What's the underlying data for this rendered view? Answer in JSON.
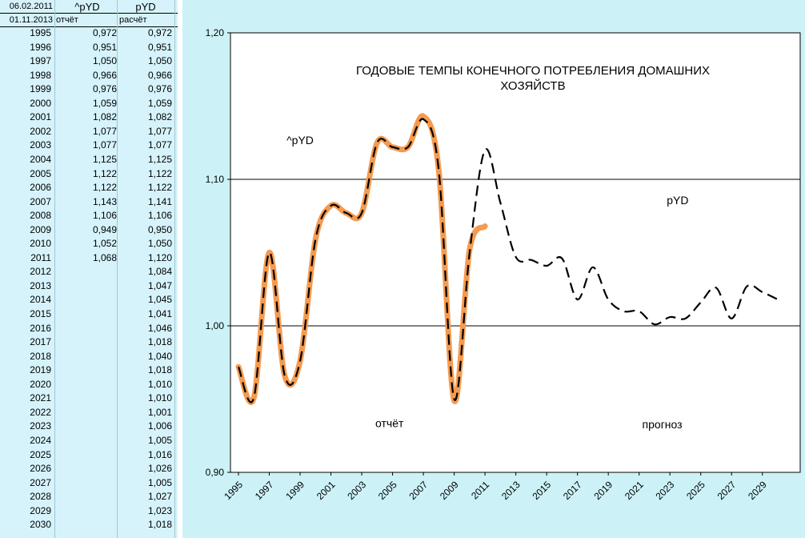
{
  "table": {
    "header_row1": {
      "date": "06.02.2011",
      "col1": "^pYD",
      "col2": "pYD"
    },
    "header_row2": {
      "date": "01.11.2013",
      "col1": "отчёт",
      "col2": "расчёт"
    },
    "rows": [
      {
        "year": "1995",
        "report": "0,972",
        "calc": "0,972"
      },
      {
        "year": "1996",
        "report": "0,951",
        "calc": "0,951"
      },
      {
        "year": "1997",
        "report": "1,050",
        "calc": "1,050"
      },
      {
        "year": "1998",
        "report": "0,966",
        "calc": "0,966"
      },
      {
        "year": "1999",
        "report": "0,976",
        "calc": "0,976"
      },
      {
        "year": "2000",
        "report": "1,059",
        "calc": "1,059"
      },
      {
        "year": "2001",
        "report": "1,082",
        "calc": "1,082"
      },
      {
        "year": "2002",
        "report": "1,077",
        "calc": "1,077"
      },
      {
        "year": "2003",
        "report": "1,077",
        "calc": "1,077"
      },
      {
        "year": "2004",
        "report": "1,125",
        "calc": "1,125"
      },
      {
        "year": "2005",
        "report": "1,122",
        "calc": "1,122"
      },
      {
        "year": "2006",
        "report": "1,122",
        "calc": "1,122"
      },
      {
        "year": "2007",
        "report": "1,143",
        "calc": "1,141"
      },
      {
        "year": "2008",
        "report": "1,106",
        "calc": "1,106"
      },
      {
        "year": "2009",
        "report": "0,949",
        "calc": "0,950"
      },
      {
        "year": "2010",
        "report": "1,052",
        "calc": "1,050"
      },
      {
        "year": "2011",
        "report": "1,068",
        "calc": "1,120"
      },
      {
        "year": "2012",
        "report": "",
        "calc": "1,084"
      },
      {
        "year": "2013",
        "report": "",
        "calc": "1,047"
      },
      {
        "year": "2014",
        "report": "",
        "calc": "1,045"
      },
      {
        "year": "2015",
        "report": "",
        "calc": "1,041"
      },
      {
        "year": "2016",
        "report": "",
        "calc": "1,046"
      },
      {
        "year": "2017",
        "report": "",
        "calc": "1,018"
      },
      {
        "year": "2018",
        "report": "",
        "calc": "1,040"
      },
      {
        "year": "2019",
        "report": "",
        "calc": "1,018"
      },
      {
        "year": "2020",
        "report": "",
        "calc": "1,010"
      },
      {
        "year": "2021",
        "report": "",
        "calc": "1,010"
      },
      {
        "year": "2022",
        "report": "",
        "calc": "1,001"
      },
      {
        "year": "2023",
        "report": "",
        "calc": "1,006"
      },
      {
        "year": "2024",
        "report": "",
        "calc": "1,005"
      },
      {
        "year": "2025",
        "report": "",
        "calc": "1,016"
      },
      {
        "year": "2026",
        "report": "",
        "calc": "1,026"
      },
      {
        "year": "2027",
        "report": "",
        "calc": "1,005"
      },
      {
        "year": "2028",
        "report": "",
        "calc": "1,027"
      },
      {
        "year": "2029",
        "report": "",
        "calc": "1,023"
      },
      {
        "year": "2030",
        "report": "",
        "calc": "1,018"
      }
    ]
  },
  "colors": {
    "table_bg": "#d6f3fb",
    "chart_panel_bg": "#ccf2f7",
    "plot_bg": "#ffffff",
    "report_series": "#f59a4e",
    "forecast_series": "#000000"
  },
  "chart_data": {
    "type": "line",
    "title": "ГОДОВЫЕ ТЕМПЫ КОНЕЧНОГО ПОТРЕБЛЕНИЯ ДОМАШНИХ ХОЗЯЙСТВ",
    "title_lines": [
      "ГОДОВЫЕ ТЕМПЫ КОНЕЧНОГО ПОТРЕБЛЕНИЯ ДОМАШНИХ",
      "ХОЗЯЙСТВ"
    ],
    "xlabel": "",
    "ylabel": "",
    "ylim": [
      0.9,
      1.2
    ],
    "y_ticks": [
      0.9,
      1.0,
      1.1,
      1.2
    ],
    "y_tick_labels": [
      "0,90",
      "1,00",
      "1,10",
      "1,20"
    ],
    "xlim": [
      1995,
      2030
    ],
    "x_tick_labels": [
      "1995",
      "1997",
      "1999",
      "2001",
      "2003",
      "2005",
      "2007",
      "2009",
      "2011",
      "2013",
      "2015",
      "2017",
      "2019",
      "2021",
      "2023",
      "2025",
      "2027",
      "2029"
    ],
    "grid": "horizontal",
    "annotations": [
      {
        "text": "^pYD",
        "x": 1999,
        "y": 1.124
      },
      {
        "text": "pYD",
        "x": 2023.5,
        "y": 1.083
      },
      {
        "text": "отчёт",
        "x": 2004.8,
        "y": 0.931
      },
      {
        "text": "прогноз",
        "x": 2022.5,
        "y": 0.93
      }
    ],
    "series": [
      {
        "name": "^pYD",
        "style": "solid-thick",
        "x": [
          1995,
          1996,
          1997,
          1998,
          1999,
          2000,
          2001,
          2002,
          2003,
          2004,
          2005,
          2006,
          2007,
          2008,
          2009,
          2010,
          2011
        ],
        "values": [
          0.972,
          0.951,
          1.05,
          0.966,
          0.976,
          1.059,
          1.082,
          1.077,
          1.077,
          1.125,
          1.122,
          1.122,
          1.143,
          1.106,
          0.949,
          1.052,
          1.068
        ]
      },
      {
        "name": "pYD",
        "style": "dashed",
        "x": [
          1995,
          1996,
          1997,
          1998,
          1999,
          2000,
          2001,
          2002,
          2003,
          2004,
          2005,
          2006,
          2007,
          2008,
          2009,
          2010,
          2011,
          2012,
          2013,
          2014,
          2015,
          2016,
          2017,
          2018,
          2019,
          2020,
          2021,
          2022,
          2023,
          2024,
          2025,
          2026,
          2027,
          2028,
          2029,
          2030
        ],
        "values": [
          0.972,
          0.951,
          1.05,
          0.966,
          0.976,
          1.059,
          1.082,
          1.077,
          1.077,
          1.125,
          1.122,
          1.122,
          1.141,
          1.106,
          0.95,
          1.05,
          1.12,
          1.084,
          1.047,
          1.045,
          1.041,
          1.046,
          1.018,
          1.04,
          1.018,
          1.01,
          1.01,
          1.001,
          1.006,
          1.005,
          1.016,
          1.026,
          1.005,
          1.027,
          1.023,
          1.018
        ]
      }
    ]
  }
}
